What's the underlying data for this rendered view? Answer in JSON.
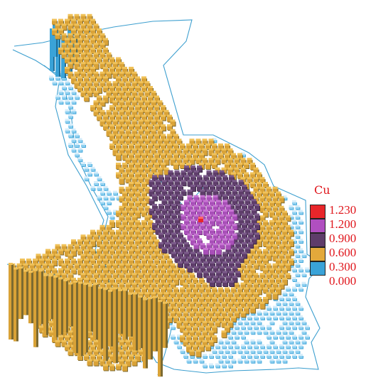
{
  "figure": {
    "kind": "3D block model of copper grade"
  },
  "legend": {
    "title": "Cu",
    "ticks": [
      "1.230",
      "1.200",
      "0.900",
      "0.600",
      "0.300",
      "0.000"
    ],
    "class_colors": [
      "#e8262a",
      "#b04fc0",
      "#5e3d6a",
      "#e3a93b",
      "#3aa3d8"
    ]
  },
  "colors": {
    "outline": "#3d9fcf",
    "cyan_block": "#3aa3d8",
    "cyan_top": "#8fd0f0",
    "yellow_front": "#d9a237",
    "yellow_top": "#f0c25a",
    "yellow_side": "#7d6a30",
    "dark_purple_front": "#5e3d6a",
    "dark_purple_top": "#7b5a8a",
    "magenta_front": "#a84fb8",
    "magenta_top": "#c874d4",
    "red": "#e8262a",
    "label_red": "#e0161c"
  }
}
